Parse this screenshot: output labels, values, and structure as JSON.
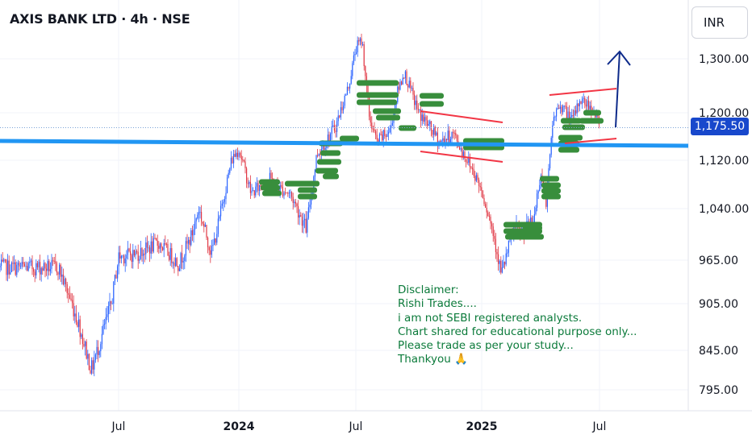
{
  "title": "AXIS BANK LTD · 4h · NSE",
  "currency": "INR",
  "last_price_label": "1,175.50",
  "disclaimer": [
    "Disclaimer:",
    "Rishi Trades....",
    "i am not SEBI registered analysts.",
    "Chart shared for educational purpose only...",
    "Please trade as per your study...",
    "Thankyou 🙏"
  ],
  "colors": {
    "up": "#26a69a",
    "down": "#ef5350",
    "support_line": "#2196f3",
    "channel": "#f23645",
    "zones": "#388e3c",
    "arrow": "#0d2a8a",
    "disclaimer": "#0b7a3a"
  },
  "chart_data": {
    "type": "candlestick",
    "symbol": "AXIS BANK LTD",
    "interval": "4h",
    "exchange": "NSE",
    "y_ticks": [
      {
        "value": 795,
        "label": "795.00"
      },
      {
        "value": 845,
        "label": "845.00"
      },
      {
        "value": 905,
        "label": "905.00"
      },
      {
        "value": 965,
        "label": "965.00"
      },
      {
        "value": 1040,
        "label": "1,040.00"
      },
      {
        "value": 1120,
        "label": "1,120.00"
      },
      {
        "value": 1200,
        "label": "1,200.00"
      },
      {
        "value": 1300,
        "label": "1,300.00"
      }
    ],
    "x_ticks": [
      {
        "label": "Jul",
        "bold": false
      },
      {
        "label": "2024",
        "bold": true
      },
      {
        "label": "Jul",
        "bold": false
      },
      {
        "label": "2025",
        "bold": true
      },
      {
        "label": "Jul",
        "bold": false
      }
    ],
    "price_path": [
      {
        "t": "2023-04",
        "price": 955
      },
      {
        "t": "2023-05",
        "price": 880
      },
      {
        "t": "2023-05-20",
        "price": 820
      },
      {
        "t": "2023-06",
        "price": 850
      },
      {
        "t": "2023-06-20",
        "price": 905
      },
      {
        "t": "2023-07",
        "price": 970
      },
      {
        "t": "2023-08",
        "price": 975
      },
      {
        "t": "2023-09",
        "price": 990
      },
      {
        "t": "2023-10",
        "price": 960
      },
      {
        "t": "2023-10-20",
        "price": 1000
      },
      {
        "t": "2023-11",
        "price": 1040
      },
      {
        "t": "2023-11-20",
        "price": 975
      },
      {
        "t": "2023-12",
        "price": 1020
      },
      {
        "t": "2023-12-20",
        "price": 1120
      },
      {
        "t": "2024-01",
        "price": 1140
      },
      {
        "t": "2024-01-20",
        "price": 1065
      },
      {
        "t": "2024-02",
        "price": 1075
      },
      {
        "t": "2024-02-20",
        "price": 1090
      },
      {
        "t": "2024-03",
        "price": 1075
      },
      {
        "t": "2024-03-20",
        "price": 1065
      },
      {
        "t": "2024-04",
        "price": 1040
      },
      {
        "t": "2024-04-15",
        "price": 1010
      },
      {
        "t": "2024-05",
        "price": 1130
      },
      {
        "t": "2024-05-20",
        "price": 1160
      },
      {
        "t": "2024-06",
        "price": 1180
      },
      {
        "t": "2024-06-20",
        "price": 1250
      },
      {
        "t": "2024-07",
        "price": 1320
      },
      {
        "t": "2024-07-10",
        "price": 1335
      },
      {
        "t": "2024-07-20",
        "price": 1195
      },
      {
        "t": "2024-08",
        "price": 1150
      },
      {
        "t": "2024-08-20",
        "price": 1170
      },
      {
        "t": "2024-09",
        "price": 1240
      },
      {
        "t": "2024-09-10",
        "price": 1275
      },
      {
        "t": "2024-10",
        "price": 1200
      },
      {
        "t": "2024-10-20",
        "price": 1170
      },
      {
        "t": "2024-11",
        "price": 1150
      },
      {
        "t": "2024-11-20",
        "price": 1165
      },
      {
        "t": "2024-12",
        "price": 1140
      },
      {
        "t": "2024-12-20",
        "price": 1100
      },
      {
        "t": "2025-01",
        "price": 1070
      },
      {
        "t": "2025-01-20",
        "price": 1000
      },
      {
        "t": "2025-02",
        "price": 945
      },
      {
        "t": "2025-02-20",
        "price": 1010
      },
      {
        "t": "2025-03",
        "price": 1005
      },
      {
        "t": "2025-03-20",
        "price": 1020
      },
      {
        "t": "2025-04",
        "price": 1100
      },
      {
        "t": "2025-04-10",
        "price": 1050
      },
      {
        "t": "2025-04-20",
        "price": 1190
      },
      {
        "t": "2025-05",
        "price": 1215
      },
      {
        "t": "2025-05-20",
        "price": 1185
      },
      {
        "t": "2025-06",
        "price": 1225
      },
      {
        "t": "2025-06-20",
        "price": 1210
      },
      {
        "t": "2025-07",
        "price": 1175.5
      }
    ],
    "last_price": 1175.5,
    "horizontal_line": {
      "color": "blue",
      "value": 1150
    },
    "arrow": {
      "direction": "up",
      "from": 1180,
      "to": 1300
    }
  }
}
